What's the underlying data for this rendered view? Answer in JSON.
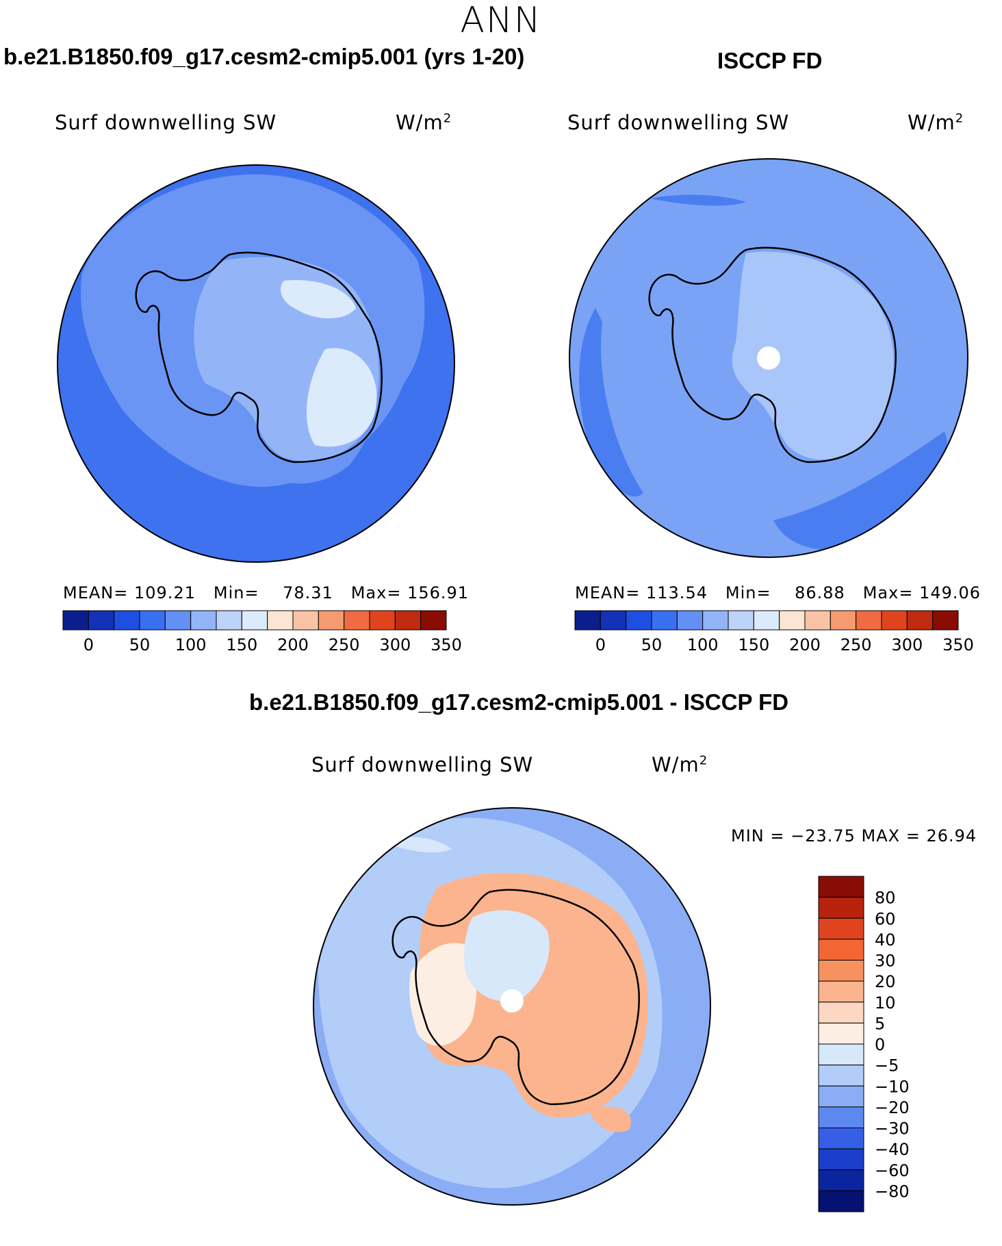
{
  "main_title": "ANN",
  "panels": {
    "model": {
      "title": "b.e21.B1850.f09_g17.cesm2-cmip5.001 (yrs 1-20)",
      "subtitle": "Surf downwelling SW",
      "units": "W/m",
      "units_sup": "2",
      "mean_label": "MEAN=",
      "mean": "109.21",
      "min_label": "Min=",
      "min": "78.31",
      "max_label": "Max=",
      "max": "156.91"
    },
    "obs": {
      "title": "ISCCP FD",
      "subtitle": "Surf downwelling SW",
      "units": "W/m",
      "units_sup": "2",
      "mean_label": "MEAN=",
      "mean": "113.54",
      "min_label": "Min=",
      "min": "86.88",
      "max_label": "Max=",
      "max": "149.06"
    },
    "diff": {
      "title": "b.e21.B1850.f09_g17.cesm2-cmip5.001 - ISCCP FD",
      "subtitle": "Surf downwelling SW",
      "units": "W/m",
      "units_sup": "2",
      "minmax_text": "MIN = −23.75 MAX =   26.94"
    }
  },
  "chart_data": [
    {
      "type": "heatmap",
      "projection": "south-polar stereographic",
      "title": "b.e21.B1850.f09_g17.cesm2-cmip5.001 (yrs 1-20)",
      "variable": "Surf downwelling SW",
      "units": "W/m2",
      "stats": {
        "mean": 109.21,
        "min": 78.31,
        "max": 156.91
      },
      "colorbar_levels": [
        0,
        50,
        100,
        150,
        200,
        250,
        300,
        350
      ],
      "colorbar_ticks": [
        "0",
        "50",
        "100",
        "150",
        "200",
        "250",
        "300",
        "350"
      ],
      "colorbar_colors": [
        "#0b1e8c",
        "#1332b8",
        "#1f4fe0",
        "#3a6ff0",
        "#6390f5",
        "#93b5f8",
        "#bcd3fa",
        "#dcebfc",
        "#fde5d4",
        "#fbc3a5",
        "#f69a72",
        "#ee6b44",
        "#e0441f",
        "#c02a10",
        "#8a0d05"
      ]
    },
    {
      "type": "heatmap",
      "projection": "south-polar stereographic",
      "title": "ISCCP FD",
      "variable": "Surf downwelling SW",
      "units": "W/m2",
      "stats": {
        "mean": 113.54,
        "min": 86.88,
        "max": 149.06
      },
      "colorbar_levels": [
        0,
        50,
        100,
        150,
        200,
        250,
        300,
        350
      ],
      "colorbar_ticks": [
        "0",
        "50",
        "100",
        "150",
        "200",
        "250",
        "300",
        "350"
      ],
      "colorbar_colors": [
        "#0b1e8c",
        "#1332b8",
        "#1f4fe0",
        "#3a6ff0",
        "#6390f5",
        "#93b5f8",
        "#bcd3fa",
        "#dcebfc",
        "#fde5d4",
        "#fbc3a5",
        "#f69a72",
        "#ee6b44",
        "#e0441f",
        "#c02a10",
        "#8a0d05"
      ]
    },
    {
      "type": "heatmap",
      "projection": "south-polar stereographic",
      "title": "b.e21.B1850.f09_g17.cesm2-cmip5.001 - ISCCP FD",
      "variable": "Surf downwelling SW",
      "units": "W/m2",
      "stats": {
        "min": -23.75,
        "max": 26.94
      },
      "colorbar_orientation": "vertical",
      "colorbar_levels": [
        -80,
        -60,
        -40,
        -30,
        -20,
        -10,
        -5,
        0,
        5,
        10,
        20,
        30,
        40,
        60,
        80
      ],
      "colorbar_ticks": [
        "80",
        "60",
        "40",
        "30",
        "20",
        "10",
        "5",
        "0",
        "−5",
        "−10",
        "−20",
        "−30",
        "−40",
        "−60",
        "−80"
      ],
      "colorbar_colors_top_to_bottom": [
        "#8a0d05",
        "#b8220d",
        "#e0441f",
        "#f26535",
        "#f7915f",
        "#fbb48e",
        "#fcd7c1",
        "#fdeee4",
        "#d8e8fb",
        "#b3cdf9",
        "#8aadf5",
        "#5d88f0",
        "#3560e6",
        "#1a3fcc",
        "#0d24a0",
        "#061170"
      ]
    }
  ]
}
